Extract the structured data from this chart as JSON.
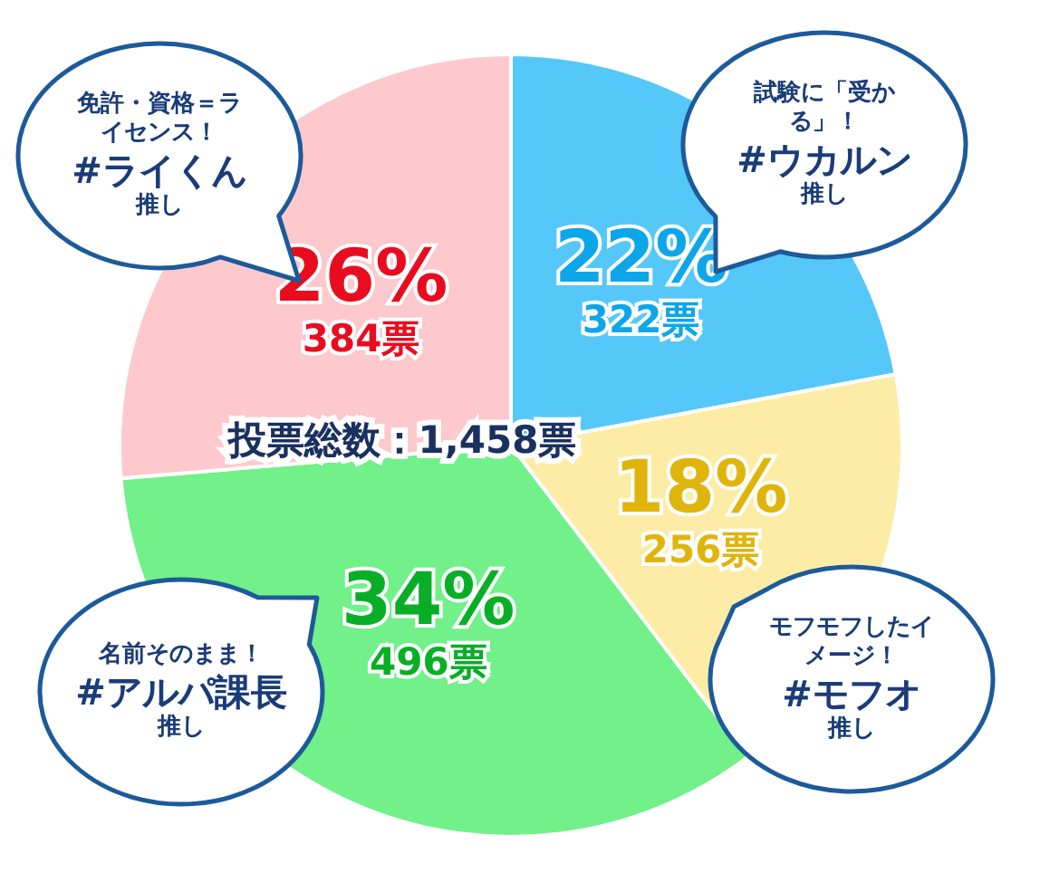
{
  "chart_data": {
    "type": "pie",
    "categories": [
      "試験に「受かる」！**#ウカルン**推し",
      "モフモフしたイメージ！**#モフオ**推し",
      "名前そのまま！**#アルパ課長**推し",
      "免許・資格＝ライセンス！**#ライくん**推し"
    ],
    "values": [
      322,
      256,
      496,
      384
    ],
    "value_labels": [
      "22%\n322票",
      "18%\n256票",
      "34%\n496票",
      "26%\n384票"
    ],
    "colors": [
      "#55c8f9",
      "#fdeca5",
      "#72f08a",
      "#fdc9cd"
    ],
    "annotations": [
      "投票総数：1,458票"
    ]
  }
}
